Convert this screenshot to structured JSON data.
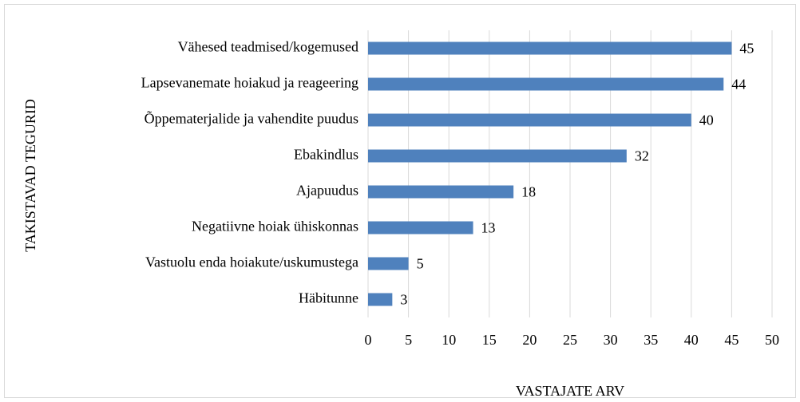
{
  "chart_data": {
    "type": "barh",
    "xlabel": "VASTAJATE ARV",
    "ylabel": "TAKISTAVAD TEGURID",
    "categories": [
      "Vähesed teadmised/kogemused",
      "Lapsevanemate hoiakud ja reageering",
      "Õppematerjalide ja vahendite puudus",
      "Ebakindlus",
      "Ajapuudus",
      "Negatiivne hoiak ühiskonnas",
      "Vastuolu enda hoiakute/uskumustega",
      "Häbitunne"
    ],
    "values": [
      45,
      44,
      40,
      32,
      18,
      13,
      5,
      3
    ],
    "color": "#4f81bd",
    "xlim": [
      0,
      50
    ],
    "xticks": [
      0,
      5,
      10,
      15,
      20,
      25,
      30,
      35,
      40,
      45,
      50
    ],
    "grid": true
  }
}
